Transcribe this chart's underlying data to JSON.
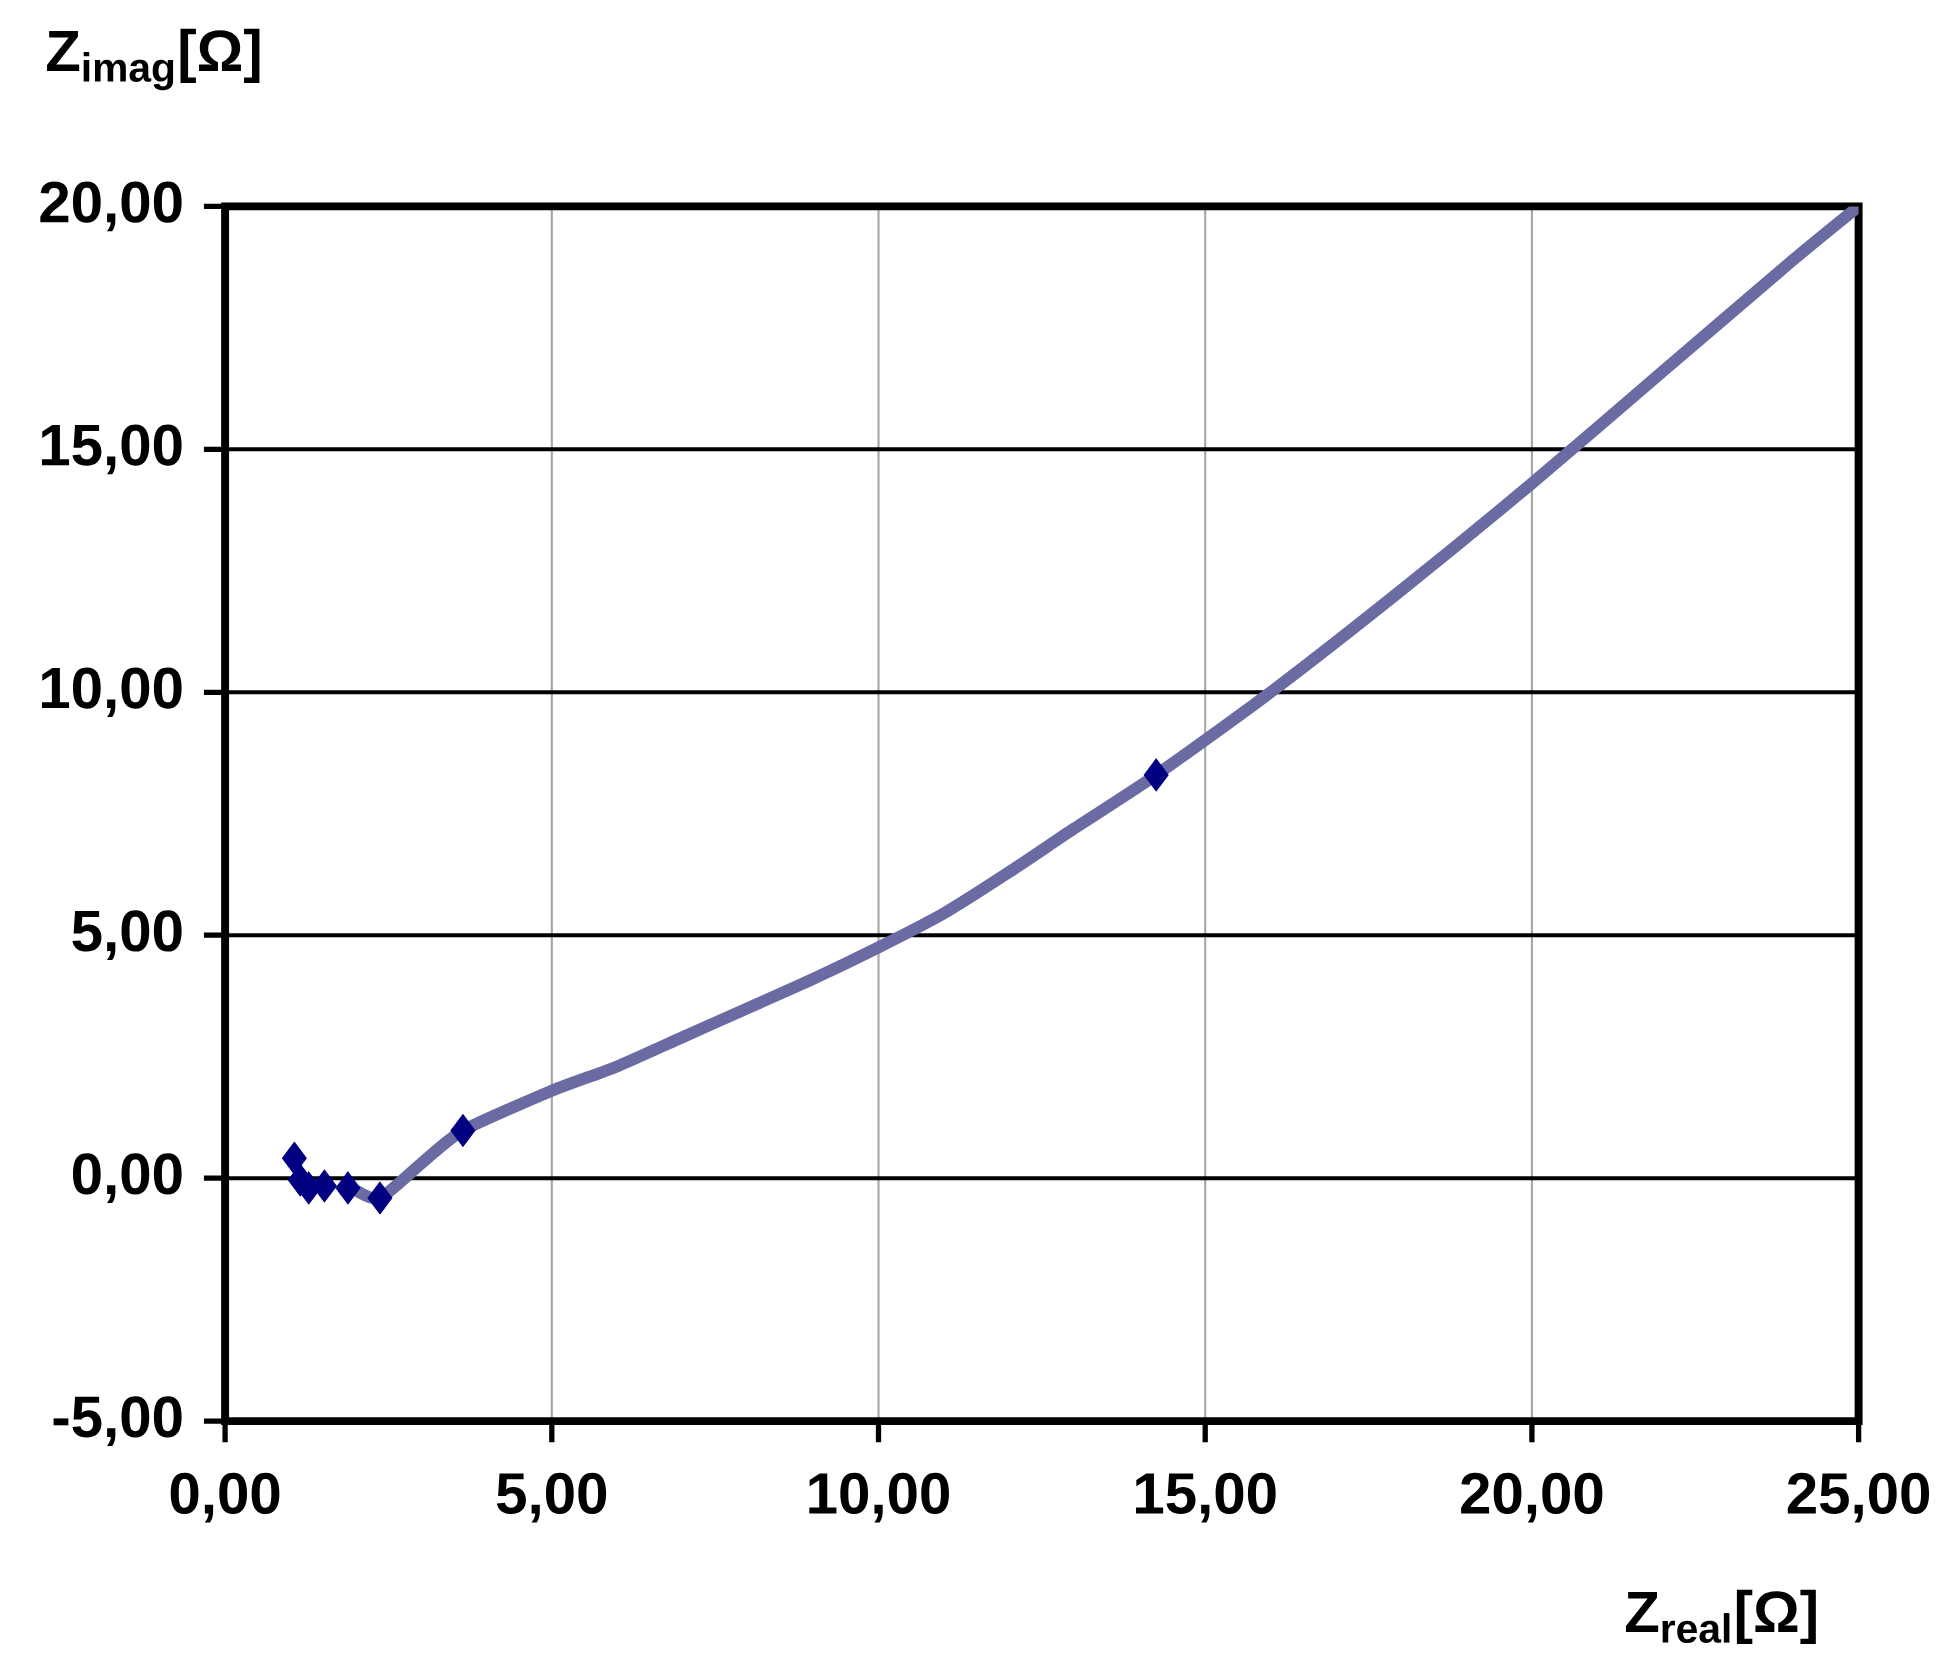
{
  "chart_data": {
    "type": "scatter",
    "xlabel": "Z$_{real}$[Ω]",
    "ylabel": "Z$_{imag}$[Ω]",
    "series": [
      {
        "type": "line",
        "color": "#6b6ba3",
        "marker": "none",
        "x": [
          2.0,
          2.37,
          3.0,
          3.64,
          5,
          6,
          7,
          8,
          9,
          10,
          11,
          12,
          13,
          14.25,
          16,
          18,
          20,
          22,
          24,
          25
        ],
        "values": [
          -0.25,
          -0.41,
          0.3,
          0.98,
          1.8,
          2.3,
          2.9,
          3.5,
          4.1,
          4.75,
          5.45,
          6.3,
          7.2,
          8.3,
          10.0,
          12.1,
          14.3,
          16.6,
          18.9,
          20.0
        ]
      },
      {
        "color": "#000080",
        "marker": "diamond",
        "x": [
          1.06,
          1.15,
          1.28,
          1.52,
          1.88,
          2.37,
          3.64,
          14.25
        ],
        "values": [
          0.41,
          -0.04,
          -0.2,
          -0.16,
          -0.2,
          -0.41,
          0.98,
          8.3
        ]
      }
    ],
    "xlim": [
      0,
      25
    ],
    "ylim": [
      -5,
      20
    ],
    "xticks": [
      {
        "value": 0,
        "label": "0,00"
      },
      {
        "value": 5,
        "label": "5,00"
      },
      {
        "value": 10,
        "label": "10,00"
      },
      {
        "value": 15,
        "label": "15,00"
      },
      {
        "value": 20,
        "label": "20,00"
      },
      {
        "value": 25,
        "label": "25,00"
      }
    ],
    "yticks": [
      {
        "value": -5,
        "label": "-5,00"
      },
      {
        "value": 0,
        "label": "0,00"
      },
      {
        "value": 5,
        "label": "5,00"
      },
      {
        "value": 10,
        "label": "10,00"
      },
      {
        "value": 15,
        "label": "15,00"
      },
      {
        "value": 20,
        "label": "20,00"
      }
    ],
    "grid": true
  }
}
